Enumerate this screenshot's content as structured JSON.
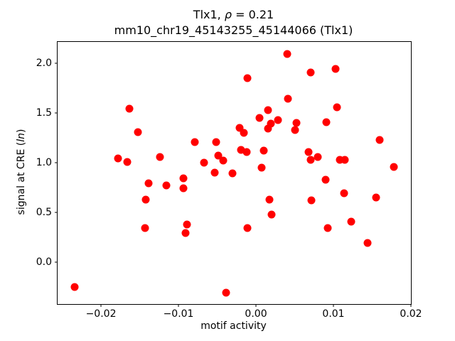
{
  "title": {
    "line1_prefix": "Tlx1, ",
    "rho": "ρ",
    "line1_suffix": " = 0.21",
    "line2": "mm10_chr19_45143255_45144066 (Tlx1)"
  },
  "axes": {
    "xlabel": "motif activity",
    "ylabel_prefix": "signal at CRE (",
    "ylabel_italic": "ln",
    "ylabel_suffix": ")",
    "x_ticks": [
      {
        "value": -0.02,
        "label": "−0.02"
      },
      {
        "value": -0.01,
        "label": "−0.01"
      },
      {
        "value": 0.0,
        "label": "0.00"
      },
      {
        "value": 0.01,
        "label": "0.01"
      },
      {
        "value": 0.02,
        "label": "0.02"
      }
    ],
    "y_ticks": [
      {
        "value": 0.0,
        "label": "0.0"
      },
      {
        "value": 0.5,
        "label": "0.5"
      },
      {
        "value": 1.0,
        "label": "1.0"
      },
      {
        "value": 1.5,
        "label": "1.5"
      },
      {
        "value": 2.0,
        "label": "2.0"
      }
    ]
  },
  "chart_data": {
    "type": "scatter",
    "title": "Tlx1, ρ = 0.21",
    "subtitle": "mm10_chr19_45143255_45144066 (Tlx1)",
    "xlabel": "motif activity",
    "ylabel": "signal at CRE (ln)",
    "xlim": [
      -0.0256,
      0.02
    ],
    "ylim": [
      -0.4214,
      2.2143
    ],
    "grid": false,
    "legend": false,
    "marker_color": "#ff0000",
    "marker_diameter_px": 11,
    "points": [
      [
        -0.0234,
        -0.25
      ],
      [
        -0.0178,
        1.04
      ],
      [
        -0.0166,
        1.01
      ],
      [
        -0.0163,
        1.54
      ],
      [
        -0.0152,
        1.31
      ],
      [
        -0.0143,
        0.34
      ],
      [
        -0.0142,
        0.63
      ],
      [
        -0.0139,
        0.79
      ],
      [
        -0.0124,
        1.06
      ],
      [
        -0.0116,
        0.77
      ],
      [
        -0.0094,
        0.84
      ],
      [
        -0.0094,
        0.74
      ],
      [
        -0.0091,
        0.29
      ],
      [
        -0.0089,
        0.38
      ],
      [
        -0.0079,
        1.21
      ],
      [
        -0.0067,
        1.0
      ],
      [
        -0.0053,
        0.9
      ],
      [
        -0.0051,
        1.21
      ],
      [
        -0.0049,
        1.07
      ],
      [
        -0.0042,
        1.02
      ],
      [
        -0.0039,
        -0.31
      ],
      [
        -0.003,
        0.89
      ],
      [
        -0.0021,
        1.35
      ],
      [
        -0.0019,
        1.13
      ],
      [
        -0.0016,
        1.3
      ],
      [
        -0.0012,
        1.11
      ],
      [
        -0.0011,
        1.85
      ],
      [
        -0.0011,
        0.34
      ],
      [
        0.0005,
        1.45
      ],
      [
        0.0007,
        0.95
      ],
      [
        0.001,
        1.12
      ],
      [
        0.0016,
        1.53
      ],
      [
        0.0016,
        1.34
      ],
      [
        0.0017,
        0.63
      ],
      [
        0.0019,
        1.39
      ],
      [
        0.002,
        0.48
      ],
      [
        0.0028,
        1.43
      ],
      [
        0.004,
        2.09
      ],
      [
        0.0041,
        1.64
      ],
      [
        0.005,
        1.33
      ],
      [
        0.0052,
        1.4
      ],
      [
        0.0068,
        1.11
      ],
      [
        0.0071,
        1.91
      ],
      [
        0.0071,
        1.03
      ],
      [
        0.0072,
        0.62
      ],
      [
        0.008,
        1.06
      ],
      [
        0.009,
        0.83
      ],
      [
        0.0091,
        1.41
      ],
      [
        0.0093,
        0.34
      ],
      [
        0.0103,
        1.94
      ],
      [
        0.0105,
        1.56
      ],
      [
        0.0108,
        1.03
      ],
      [
        0.0115,
        1.03
      ],
      [
        0.0114,
        0.69
      ],
      [
        0.0123,
        0.41
      ],
      [
        0.0144,
        0.19
      ],
      [
        0.0155,
        0.65
      ],
      [
        0.016,
        1.23
      ],
      [
        0.0178,
        0.96
      ]
    ]
  }
}
